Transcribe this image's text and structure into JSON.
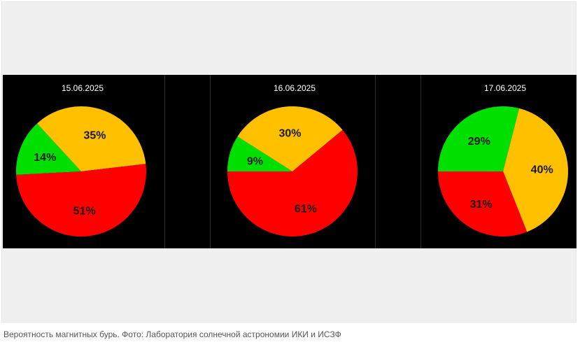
{
  "chart_data": [
    {
      "type": "pie",
      "title": "15.06.2025",
      "slices": [
        {
          "label": "14%",
          "value": 14,
          "color": "#00e000"
        },
        {
          "label": "35%",
          "value": 35,
          "color": "#ffc000"
        },
        {
          "label": "51%",
          "value": 51,
          "color": "#ff0000"
        }
      ]
    },
    {
      "type": "pie",
      "title": "16.06.2025",
      "slices": [
        {
          "label": "9%",
          "value": 9,
          "color": "#00e000"
        },
        {
          "label": "30%",
          "value": 30,
          "color": "#ffc000"
        },
        {
          "label": "61%",
          "value": 61,
          "color": "#ff0000"
        }
      ]
    },
    {
      "type": "pie",
      "title": "17.06.2025",
      "slices": [
        {
          "label": "29%",
          "value": 29,
          "color": "#00e000"
        },
        {
          "label": "40%",
          "value": 40,
          "color": "#ffc000"
        },
        {
          "label": "31%",
          "value": 31,
          "color": "#ff0000"
        }
      ]
    }
  ],
  "caption": "Вероятность магнитных бурь. Фото: Лаборатория солнечной астрономии ИКИ и ИСЗФ"
}
